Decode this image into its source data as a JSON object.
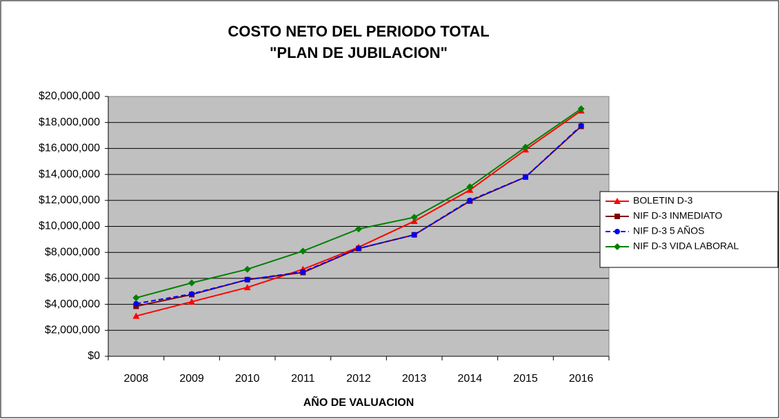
{
  "chart_data": {
    "type": "line",
    "title": "COSTO NETO DEL PERIODO TOTAL",
    "subtitle": "\"PLAN DE JUBILACION\"",
    "x_label": "AÑO DE VALUACION",
    "categories": [
      "2008",
      "2009",
      "2010",
      "2011",
      "2012",
      "2013",
      "2014",
      "2015",
      "2016"
    ],
    "series": [
      {
        "name": "BOLETIN D-3",
        "color": "#FF0000",
        "marker": "triangle",
        "values": [
          3100000,
          4200000,
          5300000,
          6700000,
          8400000,
          10400000,
          12800000,
          15900000,
          18900000
        ]
      },
      {
        "name": "NIF D-3 INMEDIATO",
        "color": "#800000",
        "marker": "square",
        "values": [
          3850000,
          4750000,
          5900000,
          6450000,
          8300000,
          9350000,
          11950000,
          13800000,
          17700000
        ]
      },
      {
        "name": "NIF D-3 5 AÑOS",
        "color": "#0000FF",
        "marker": "circle",
        "dash": true,
        "values": [
          4050000,
          4800000,
          5900000,
          6500000,
          8300000,
          9350000,
          12000000,
          13800000,
          17750000
        ]
      },
      {
        "name": "NIF D-3 VIDA LABORAL",
        "color": "#008000",
        "marker": "diamond",
        "values": [
          4500000,
          5650000,
          6700000,
          8100000,
          9800000,
          10700000,
          13050000,
          16100000,
          19050000
        ]
      }
    ],
    "ylim": [
      0,
      20000000
    ],
    "yticks": [
      {
        "value": 0,
        "label": "$0"
      },
      {
        "value": 2000000,
        "label": "$2,000,000"
      },
      {
        "value": 4000000,
        "label": "$4,000,000"
      },
      {
        "value": 6000000,
        "label": "$6,000,000"
      },
      {
        "value": 8000000,
        "label": "$8,000,000"
      },
      {
        "value": 10000000,
        "label": "$10,000,000"
      },
      {
        "value": 12000000,
        "label": "$12,000,000"
      },
      {
        "value": 14000000,
        "label": "$14,000,000"
      },
      {
        "value": 16000000,
        "label": "$16,000,000"
      },
      {
        "value": 18000000,
        "label": "$18,000,000"
      },
      {
        "value": 20000000,
        "label": "$20,000,000"
      }
    ],
    "grid": true,
    "legend": "right",
    "plot_background": "#C0C0C0"
  }
}
